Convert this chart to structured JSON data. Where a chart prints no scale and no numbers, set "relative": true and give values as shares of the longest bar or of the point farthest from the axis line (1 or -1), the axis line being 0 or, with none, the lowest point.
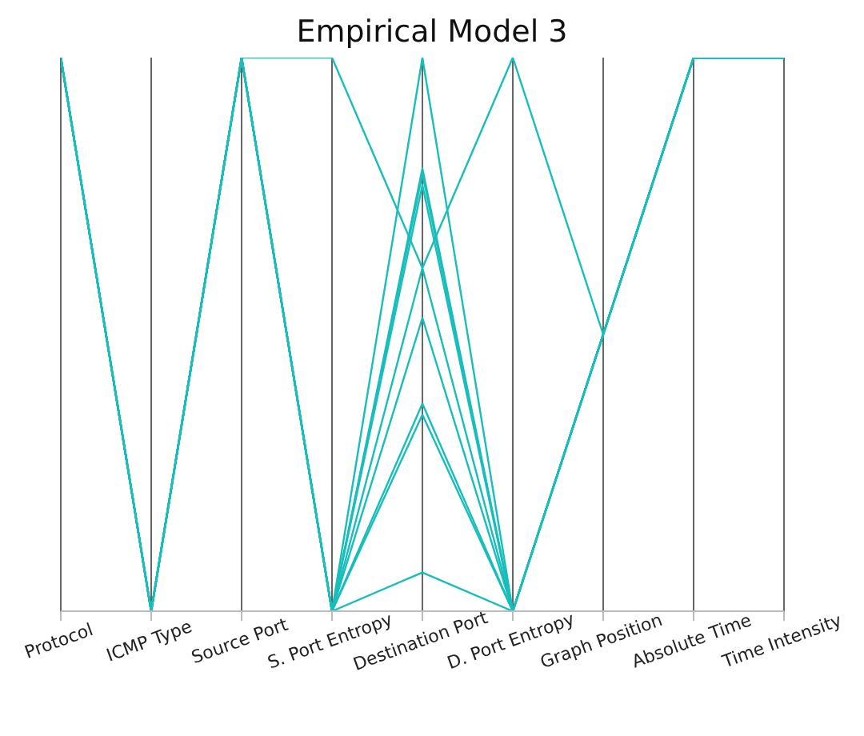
{
  "chart_data": {
    "type": "line",
    "title": "Empirical Model 3",
    "relative": true,
    "grid": "x",
    "legend": false,
    "marker": "none",
    "categories": [
      "Protocol",
      "ICMP Type",
      "Source Port",
      "S. Port Entropy",
      "Destination Port",
      "D. Port Entropy",
      "Graph Position",
      "Absolute Time",
      "Time Intensity"
    ],
    "series": [
      {
        "color": "#17bebb",
        "values": [
          1,
          0,
          1,
          1,
          0.62,
          0,
          0.5,
          1,
          1
        ]
      },
      {
        "color": "#17bebb",
        "values": [
          1,
          0,
          1,
          0,
          0.62,
          1,
          0.5,
          1,
          1
        ]
      },
      {
        "color": "#17bebb",
        "values": [
          1,
          0,
          1,
          0,
          1,
          0,
          0.5,
          1,
          1
        ]
      },
      {
        "color": "#17bebb",
        "values": [
          1,
          0,
          1,
          0,
          0.8,
          0,
          0.5,
          1,
          1
        ]
      },
      {
        "color": "#17bebb",
        "values": [
          1,
          0,
          1,
          0,
          0.79,
          0,
          0.5,
          1,
          1
        ]
      },
      {
        "color": "#17bebb",
        "values": [
          1,
          0,
          1,
          0,
          0.77,
          0,
          0.5,
          1,
          1
        ]
      },
      {
        "color": "#17bebb",
        "values": [
          1,
          0,
          1,
          0,
          0.53,
          0,
          0.5,
          1,
          1
        ]
      },
      {
        "color": "#17bebb",
        "values": [
          1,
          0,
          1,
          0,
          0.375,
          0,
          0.5,
          1,
          1
        ]
      },
      {
        "color": "#17bebb",
        "values": [
          1,
          0,
          1,
          0,
          0.355,
          0,
          0.5,
          1,
          1
        ]
      },
      {
        "color": "#17bebb",
        "values": [
          1,
          0,
          1,
          0,
          0.07,
          0,
          0.5,
          1,
          1
        ]
      }
    ]
  }
}
